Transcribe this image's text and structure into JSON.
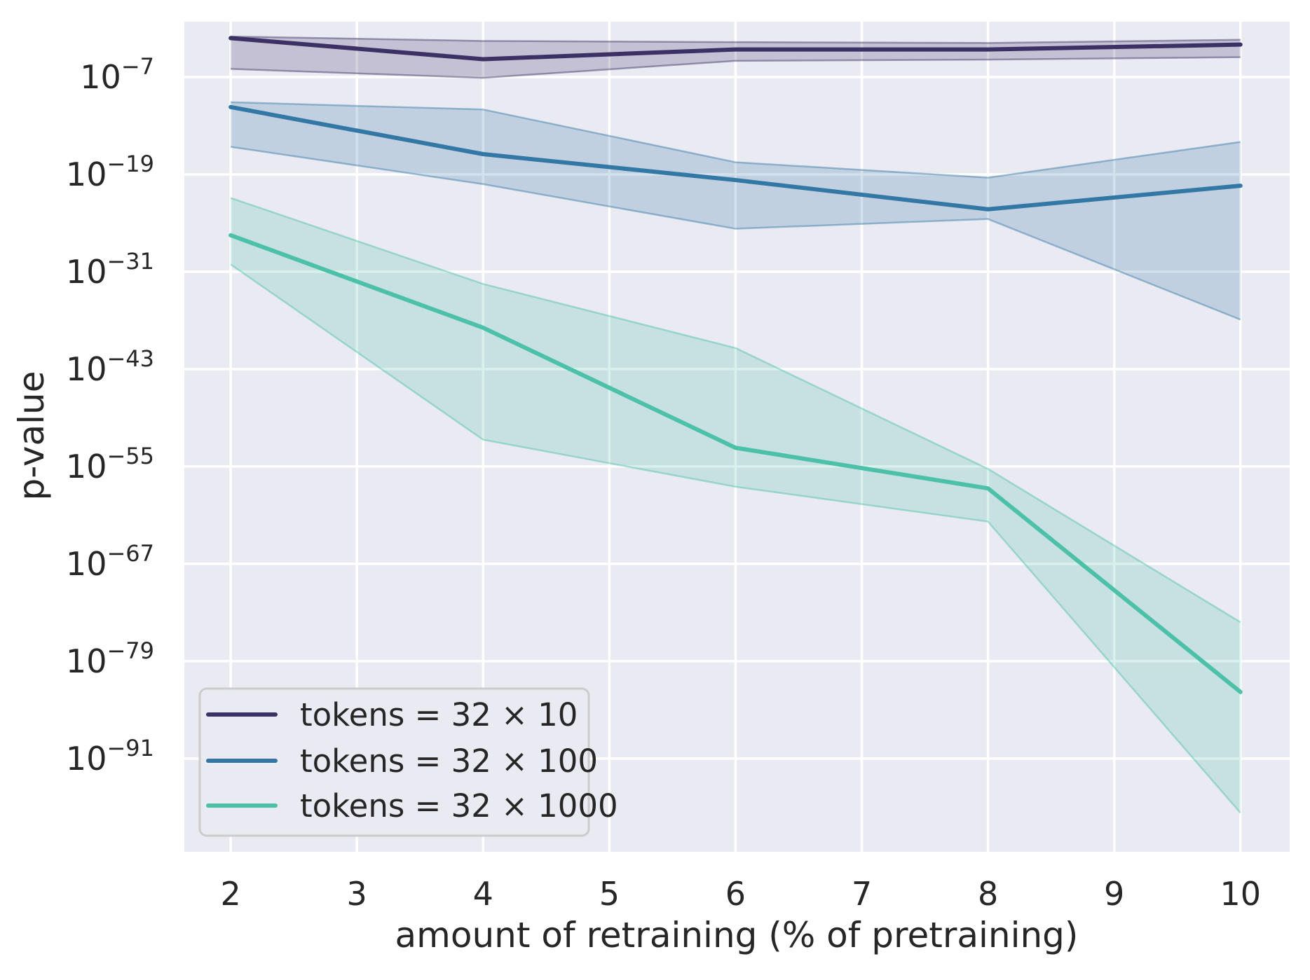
{
  "chart_data": {
    "type": "line",
    "title": "",
    "xlabel": "amount of retraining (% of pretraining)",
    "ylabel": "p-value",
    "y_scale": "log",
    "grid": true,
    "legend_position": "lower left",
    "x": [
      2,
      4,
      6,
      8,
      10
    ],
    "x_ticks": [
      2,
      3,
      4,
      5,
      6,
      7,
      8,
      9,
      10
    ],
    "y_tick_exponents": [
      -7,
      -19,
      -31,
      -43,
      -55,
      -67,
      -79,
      -91
    ],
    "xlim": [
      1.633,
      10.39
    ],
    "ylim_log10": [
      -102.5,
      -0.18
    ],
    "series": [
      {
        "name": "tokens = 32 × 10",
        "color": "#3b3164",
        "log10_p": [
          -2.2,
          -4.8,
          -3.6,
          -3.6,
          -3.0
        ],
        "ci_upper_log10": [
          -2.0,
          -2.55,
          -2.7,
          -2.8,
          -2.4
        ],
        "ci_lower_log10": [
          -6.0,
          -7.1,
          -5.0,
          -4.85,
          -4.55
        ]
      },
      {
        "name": "tokens = 32 × 100",
        "color": "#3378a5",
        "log10_p": [
          -10.7,
          -16.5,
          -19.7,
          -23.3,
          -20.4
        ],
        "ci_upper_log10": [
          -10.1,
          -11.0,
          -17.5,
          -19.4,
          -15.0
        ],
        "ci_lower_log10": [
          -15.6,
          -20.2,
          -25.7,
          -24.5,
          -36.9
        ]
      },
      {
        "name": "tokens = 32 × 1000",
        "color": "#4cc1a7",
        "log10_p": [
          -26.5,
          -37.9,
          -52.7,
          -57.7,
          -82.8
        ],
        "ci_upper_log10": [
          -21.9,
          -32.5,
          -40.4,
          -55.3,
          -74.2
        ],
        "ci_lower_log10": [
          -30.1,
          -51.7,
          -57.5,
          -61.8,
          -97.7
        ]
      }
    ]
  },
  "colors": {
    "figure_bg": "#ffffff",
    "axes_bg": "#eaeaf2",
    "grid": "#ffffff",
    "text": "#262626",
    "legend_border": "#cccccc",
    "legend_bg": "#eaeaf2"
  }
}
